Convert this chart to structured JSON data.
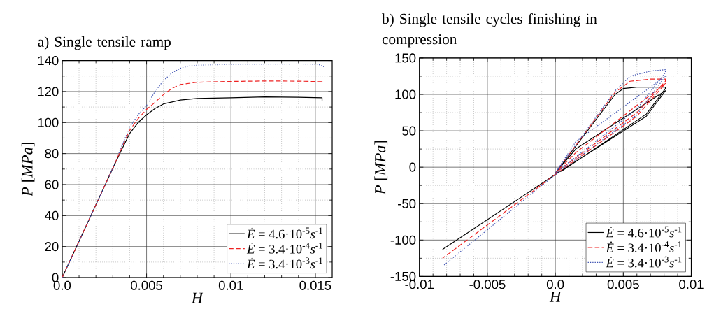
{
  "chart_data": [
    {
      "type": "line",
      "title": "a) Single tensile ramp",
      "xlabel": "H",
      "ylabel": "*P* [*MPa*]",
      "xlim": [
        0,
        0.016
      ],
      "ylim": [
        0,
        140
      ],
      "xticks": [
        {
          "value": 0,
          "label": "0.0"
        },
        0.005,
        0.01,
        0.015
      ],
      "yticks": [
        0,
        20,
        40,
        60,
        80,
        100,
        120,
        140
      ],
      "grid": true,
      "legend": "bottom right",
      "series": [
        {
          "name": "*Ė* = 4.6·10$^{-5}$*s*$^{-1}$",
          "color": "#000000",
          "line_style": "solid",
          "x": [
            0,
            0.001,
            0.002,
            0.003,
            0.0035,
            0.004,
            0.0045,
            0.005,
            0.0055,
            0.006,
            0.007,
            0.008,
            0.01,
            0.012,
            0.014,
            0.0154,
            0.0154
          ],
          "values": [
            0,
            23.5,
            47,
            70.5,
            82,
            93,
            100,
            105,
            109,
            112,
            114.5,
            115.5,
            116,
            116.5,
            116.3,
            116,
            114
          ]
        },
        {
          "name": "*Ė* = 3.4·10$^{-4}$*s*$^{-1}$",
          "color": "#ee2222",
          "line_style": "dashed",
          "x": [
            0,
            0.001,
            0.002,
            0.003,
            0.0035,
            0.004,
            0.0045,
            0.005,
            0.0055,
            0.006,
            0.0065,
            0.007,
            0.008,
            0.01,
            0.012,
            0.014,
            0.0154,
            0.0155
          ],
          "values": [
            0,
            23.5,
            47,
            70.5,
            83,
            95,
            102.5,
            108.5,
            113,
            118,
            122,
            124.5,
            126,
            126.5,
            126.8,
            126.7,
            126.3,
            125
          ]
        },
        {
          "name": "*Ė* = 3.4·10$^{-3}$*s*$^{-1}$",
          "color": "#3a4fb0",
          "line_style": "dotted",
          "x": [
            0,
            0.001,
            0.002,
            0.003,
            0.0035,
            0.004,
            0.0045,
            0.005,
            0.0055,
            0.006,
            0.0065,
            0.007,
            0.0075,
            0.008,
            0.01,
            0.014,
            0.0152,
            0.0155
          ],
          "values": [
            0,
            23.5,
            47,
            70.5,
            84,
            97,
            105,
            111,
            120,
            127,
            132,
            135,
            136.5,
            137,
            137.5,
            137.8,
            137.5,
            136
          ]
        }
      ]
    },
    {
      "type": "line",
      "title": "b) Single tensile cycles finishing in compression",
      "xlabel": "H",
      "ylabel": "*P* [*MPa*]",
      "xlim": [
        -0.01,
        0.01
      ],
      "ylim": [
        -150,
        150
      ],
      "xticks": [
        -0.01,
        -0.005,
        {
          "value": 0,
          "label": "0.0"
        },
        0.005,
        0.01
      ],
      "yticks": [
        -150,
        -100,
        -50,
        0,
        50,
        100,
        150
      ],
      "grid": true,
      "legend": "bottom right",
      "series": [
        {
          "name": "*Ė* = 4.6·10$^{-5}$*s*$^{-1}$",
          "color": "#000000",
          "line_style": "solid",
          "x": [
            0,
            0.0044,
            0.005,
            0.006,
            0.0081,
            0.0081,
            0.0067,
            0.0005,
            0,
            0.0015,
            0.0081,
            0.0067,
            0,
            -0.0083
          ],
          "values": [
            -8,
            100,
            108,
            110,
            110,
            108,
            73,
            -5,
            -8,
            25,
            105,
            70,
            -10,
            -113
          ]
        },
        {
          "name": "*Ė* = 3.4·10$^{-4}$*s*$^{-1}$",
          "color": "#ee2222",
          "line_style": "dashed",
          "x": [
            0,
            0.0044,
            0.0055,
            0.007,
            0.0081,
            0.0081,
            0.006,
            0,
            0.0015,
            0.0081,
            0.006,
            0,
            -0.0083
          ],
          "values": [
            -8,
            103,
            118,
            121,
            121,
            118,
            75,
            -8,
            20,
            115,
            70,
            -10,
            -125
          ]
        },
        {
          "name": "*Ė* = 3.4·10$^{-3}$*s*$^{-1}$",
          "color": "#3a4fb0",
          "line_style": "dotted",
          "x": [
            0,
            0.0044,
            0.0055,
            0.007,
            0.0081,
            0.0081,
            0.006,
            0,
            0.0015,
            0.0081,
            0.006,
            0,
            -0.0083
          ],
          "values": [
            -8,
            105,
            125,
            132,
            134,
            130,
            80,
            -8,
            35,
            125,
            72,
            -10,
            -136
          ]
        }
      ]
    }
  ]
}
